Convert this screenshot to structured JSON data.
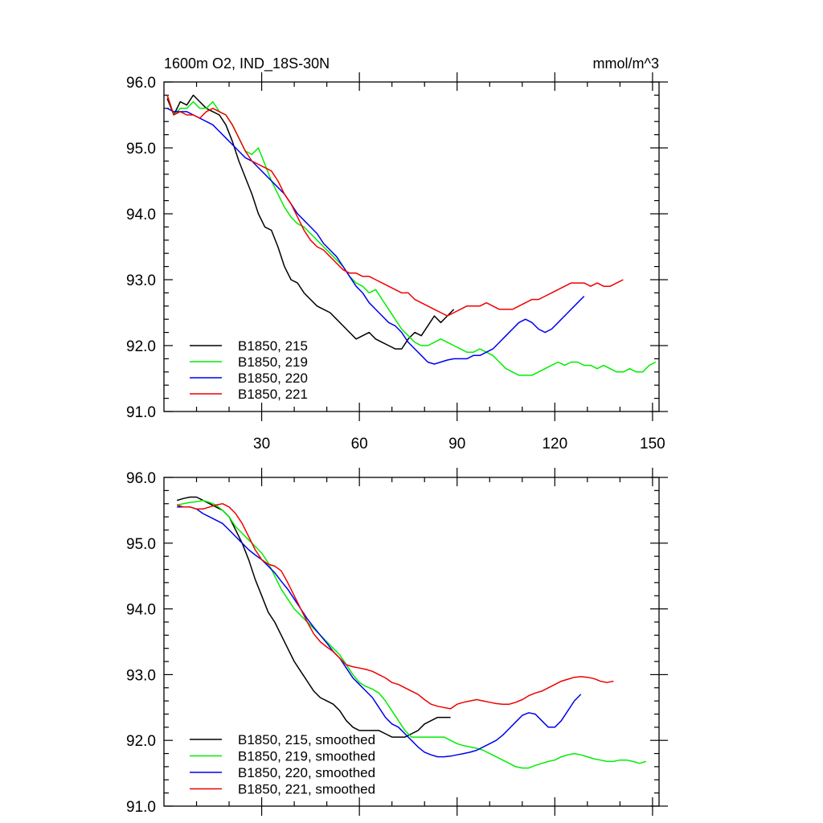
{
  "chart_data": [
    {
      "type": "line",
      "title": "1600m O2, IND_18S-30N",
      "units": "mmol/m^3",
      "xlabel": "",
      "ylabel": "",
      "xlim": [
        0,
        152
      ],
      "ylim": [
        91.0,
        96.0
      ],
      "xticks": [
        "30",
        "60",
        "90",
        "120",
        "150"
      ],
      "yticks": [
        "96.0",
        "95.0",
        "94.0",
        "93.0",
        "92.0",
        "91.0"
      ],
      "legend_position": "bottom-left",
      "series": [
        {
          "name": "B1850, 215",
          "color": "#000000",
          "x": [
            1,
            3,
            5,
            7,
            9,
            11,
            13,
            15,
            17,
            19,
            21,
            23,
            25,
            27,
            29,
            31,
            33,
            35,
            37,
            39,
            41,
            43,
            45,
            47,
            49,
            51,
            53,
            55,
            57,
            59,
            61,
            63,
            65,
            67,
            69,
            71,
            73,
            75,
            77,
            79,
            81,
            83,
            85,
            87,
            89
          ],
          "values": [
            95.75,
            95.5,
            95.7,
            95.65,
            95.8,
            95.7,
            95.6,
            95.55,
            95.5,
            95.35,
            95.1,
            94.8,
            94.55,
            94.3,
            94.0,
            93.8,
            93.75,
            93.5,
            93.2,
            93.0,
            92.95,
            92.8,
            92.7,
            92.6,
            92.55,
            92.5,
            92.4,
            92.3,
            92.2,
            92.1,
            92.15,
            92.2,
            92.1,
            92.05,
            92.0,
            91.95,
            91.95,
            92.1,
            92.2,
            92.15,
            92.3,
            92.45,
            92.35,
            92.45,
            92.55
          ]
        },
        {
          "name": "B1850, 219",
          "color": "#00ee00",
          "x": [
            1,
            3,
            5,
            7,
            9,
            11,
            13,
            15,
            17,
            19,
            21,
            23,
            25,
            27,
            29,
            31,
            33,
            35,
            37,
            39,
            41,
            43,
            45,
            47,
            49,
            51,
            53,
            55,
            57,
            59,
            61,
            63,
            65,
            67,
            69,
            71,
            73,
            75,
            77,
            79,
            81,
            83,
            85,
            87,
            89,
            91,
            93,
            95,
            97,
            99,
            101,
            103,
            105,
            107,
            109,
            111,
            113,
            115,
            117,
            119,
            121,
            123,
            125,
            127,
            129,
            131,
            133,
            135,
            137,
            139,
            141,
            143,
            145,
            147,
            149,
            151
          ],
          "values": [
            95.8,
            95.5,
            95.6,
            95.6,
            95.7,
            95.6,
            95.6,
            95.7,
            95.55,
            95.5,
            95.35,
            95.15,
            94.95,
            94.9,
            95.0,
            94.75,
            94.5,
            94.3,
            94.1,
            93.95,
            93.85,
            93.8,
            93.7,
            93.6,
            93.5,
            93.4,
            93.3,
            93.2,
            93.05,
            92.95,
            92.9,
            92.8,
            92.85,
            92.7,
            92.55,
            92.4,
            92.25,
            92.15,
            92.05,
            92.0,
            92.0,
            92.05,
            92.1,
            92.05,
            92.0,
            91.95,
            91.9,
            91.9,
            91.95,
            91.9,
            91.85,
            91.75,
            91.65,
            91.6,
            91.55,
            91.55,
            91.55,
            91.6,
            91.65,
            91.7,
            91.75,
            91.7,
            91.75,
            91.75,
            91.7,
            91.7,
            91.65,
            91.7,
            91.65,
            91.6,
            91.6,
            91.65,
            91.6,
            91.6,
            91.7,
            91.75
          ]
        },
        {
          "name": "B1850, 220",
          "color": "#0000ee",
          "x": [
            1,
            3,
            5,
            7,
            9,
            11,
            13,
            15,
            17,
            19,
            21,
            23,
            25,
            27,
            29,
            31,
            33,
            35,
            37,
            39,
            41,
            43,
            45,
            47,
            49,
            51,
            53,
            55,
            57,
            59,
            61,
            63,
            65,
            67,
            69,
            71,
            73,
            75,
            77,
            79,
            81,
            83,
            85,
            87,
            89,
            91,
            93,
            95,
            97,
            99,
            101,
            103,
            105,
            107,
            109,
            111,
            113,
            115,
            117,
            119,
            121,
            123,
            125,
            127,
            129
          ],
          "values": [
            95.6,
            95.55,
            95.55,
            95.55,
            95.5,
            95.45,
            95.4,
            95.35,
            95.25,
            95.15,
            95.05,
            94.95,
            94.85,
            94.8,
            94.7,
            94.6,
            94.5,
            94.4,
            94.3,
            94.15,
            94.0,
            93.9,
            93.8,
            93.7,
            93.55,
            93.45,
            93.35,
            93.2,
            93.05,
            92.9,
            92.8,
            92.65,
            92.55,
            92.45,
            92.35,
            92.3,
            92.2,
            92.05,
            91.95,
            91.85,
            91.75,
            91.72,
            91.75,
            91.78,
            91.8,
            91.8,
            91.8,
            91.85,
            91.85,
            91.9,
            91.95,
            92.05,
            92.15,
            92.25,
            92.35,
            92.4,
            92.35,
            92.25,
            92.2,
            92.25,
            92.35,
            92.45,
            92.55,
            92.65,
            92.75
          ]
        },
        {
          "name": "B1850, 221",
          "color": "#ee0000",
          "x": [
            1,
            3,
            5,
            7,
            9,
            11,
            13,
            15,
            17,
            19,
            21,
            23,
            25,
            27,
            29,
            31,
            33,
            35,
            37,
            39,
            41,
            43,
            45,
            47,
            49,
            51,
            53,
            55,
            57,
            59,
            61,
            63,
            65,
            67,
            69,
            71,
            73,
            75,
            77,
            79,
            81,
            83,
            85,
            87,
            89,
            91,
            93,
            95,
            97,
            99,
            101,
            103,
            105,
            107,
            109,
            111,
            113,
            115,
            117,
            119,
            121,
            123,
            125,
            127,
            129,
            131,
            133,
            135,
            137,
            139,
            141
          ],
          "values": [
            95.8,
            95.5,
            95.55,
            95.5,
            95.5,
            95.45,
            95.55,
            95.6,
            95.55,
            95.5,
            95.35,
            95.15,
            94.95,
            94.8,
            94.75,
            94.7,
            94.65,
            94.5,
            94.3,
            94.15,
            93.95,
            93.75,
            93.6,
            93.5,
            93.45,
            93.35,
            93.25,
            93.15,
            93.1,
            93.1,
            93.05,
            93.05,
            93.0,
            92.95,
            92.9,
            92.85,
            92.8,
            92.8,
            92.7,
            92.65,
            92.6,
            92.55,
            92.5,
            92.45,
            92.5,
            92.55,
            92.6,
            92.6,
            92.6,
            92.65,
            92.6,
            92.55,
            92.55,
            92.55,
            92.6,
            92.65,
            92.7,
            92.7,
            92.75,
            92.8,
            92.85,
            92.9,
            92.95,
            92.95,
            92.95,
            92.9,
            92.95,
            92.9,
            92.9,
            92.95,
            93.0
          ]
        }
      ]
    },
    {
      "type": "line",
      "title": "",
      "xlabel": "",
      "ylabel": "",
      "xlim": [
        0,
        152
      ],
      "ylim": [
        91.0,
        96.0
      ],
      "xticks": [],
      "yticks": [
        "96.0",
        "95.0",
        "94.0",
        "93.0",
        "92.0",
        "91.0"
      ],
      "legend_position": "bottom-left",
      "series": [
        {
          "name": "B1850, 215, smoothed",
          "color": "#000000",
          "x": [
            4,
            6,
            8,
            10,
            12,
            14,
            16,
            18,
            20,
            22,
            24,
            26,
            28,
            30,
            32,
            34,
            36,
            38,
            40,
            42,
            44,
            46,
            48,
            50,
            52,
            54,
            56,
            58,
            60,
            62,
            64,
            66,
            68,
            70,
            72,
            74,
            76,
            78,
            80,
            82,
            84,
            86,
            88
          ],
          "values": [
            95.65,
            95.68,
            95.7,
            95.7,
            95.65,
            95.6,
            95.55,
            95.5,
            95.4,
            95.2,
            95.0,
            94.75,
            94.45,
            94.2,
            93.95,
            93.8,
            93.6,
            93.4,
            93.2,
            93.05,
            92.9,
            92.75,
            92.65,
            92.6,
            92.55,
            92.45,
            92.3,
            92.2,
            92.15,
            92.15,
            92.15,
            92.15,
            92.1,
            92.05,
            92.05,
            92.05,
            92.1,
            92.15,
            92.25,
            92.3,
            92.35,
            92.35,
            92.35
          ]
        },
        {
          "name": "B1850, 219, smoothed",
          "color": "#00ee00",
          "x": [
            4,
            6,
            8,
            10,
            12,
            14,
            16,
            18,
            20,
            22,
            24,
            26,
            28,
            30,
            32,
            34,
            36,
            38,
            40,
            42,
            44,
            46,
            48,
            50,
            52,
            54,
            56,
            58,
            60,
            62,
            64,
            66,
            68,
            70,
            72,
            74,
            76,
            78,
            80,
            82,
            84,
            86,
            88,
            90,
            92,
            94,
            96,
            98,
            100,
            102,
            104,
            106,
            108,
            110,
            112,
            114,
            116,
            118,
            120,
            122,
            124,
            126,
            128,
            130,
            132,
            134,
            136,
            138,
            140,
            142,
            144,
            146,
            148
          ],
          "values": [
            95.58,
            95.6,
            95.62,
            95.63,
            95.65,
            95.62,
            95.58,
            95.5,
            95.4,
            95.25,
            95.15,
            95.05,
            94.95,
            94.85,
            94.7,
            94.5,
            94.3,
            94.15,
            94.0,
            93.9,
            93.8,
            93.7,
            93.6,
            93.5,
            93.4,
            93.3,
            93.15,
            93.0,
            92.88,
            92.82,
            92.78,
            92.72,
            92.6,
            92.45,
            92.3,
            92.15,
            92.05,
            92.05,
            92.05,
            92.05,
            92.05,
            92.05,
            92.0,
            91.95,
            91.92,
            91.9,
            91.88,
            91.85,
            91.8,
            91.75,
            91.7,
            91.65,
            91.6,
            91.58,
            91.58,
            91.62,
            91.65,
            91.68,
            91.7,
            91.75,
            91.78,
            91.8,
            91.78,
            91.75,
            91.72,
            91.7,
            91.68,
            91.68,
            91.7,
            91.7,
            91.68,
            91.65,
            91.68
          ]
        },
        {
          "name": "B1850, 220, smoothed",
          "color": "#0000ee",
          "x": [
            4,
            6,
            8,
            10,
            12,
            14,
            16,
            18,
            20,
            22,
            24,
            26,
            28,
            30,
            32,
            34,
            36,
            38,
            40,
            42,
            44,
            46,
            48,
            50,
            52,
            54,
            56,
            58,
            60,
            62,
            64,
            66,
            68,
            70,
            72,
            74,
            76,
            78,
            80,
            82,
            84,
            86,
            88,
            90,
            92,
            94,
            96,
            98,
            100,
            102,
            104,
            106,
            108,
            110,
            112,
            114,
            116,
            118,
            120,
            122,
            124,
            126,
            128
          ],
          "values": [
            95.55,
            95.55,
            95.55,
            95.52,
            95.45,
            95.4,
            95.35,
            95.3,
            95.2,
            95.1,
            95.0,
            94.9,
            94.82,
            94.75,
            94.65,
            94.55,
            94.42,
            94.3,
            94.15,
            94.0,
            93.85,
            93.72,
            93.6,
            93.48,
            93.35,
            93.25,
            93.1,
            92.95,
            92.85,
            92.75,
            92.65,
            92.5,
            92.35,
            92.25,
            92.2,
            92.1,
            92.0,
            91.9,
            91.82,
            91.78,
            91.75,
            91.75,
            91.76,
            91.78,
            91.8,
            91.82,
            91.85,
            91.9,
            91.95,
            92.0,
            92.08,
            92.18,
            92.28,
            92.38,
            92.42,
            92.4,
            92.3,
            92.2,
            92.2,
            92.3,
            92.45,
            92.6,
            92.7
          ]
        },
        {
          "name": "B1850, 221, smoothed",
          "color": "#ee0000",
          "x": [
            4,
            6,
            8,
            10,
            12,
            14,
            16,
            18,
            20,
            22,
            24,
            26,
            28,
            30,
            32,
            34,
            36,
            38,
            40,
            42,
            44,
            46,
            48,
            50,
            52,
            54,
            56,
            58,
            60,
            62,
            64,
            66,
            68,
            70,
            72,
            74,
            76,
            78,
            80,
            82,
            84,
            86,
            88,
            90,
            92,
            94,
            96,
            98,
            100,
            102,
            104,
            106,
            108,
            110,
            112,
            114,
            116,
            118,
            120,
            122,
            124,
            126,
            128,
            130,
            132,
            134,
            136,
            138
          ],
          "values": [
            95.58,
            95.55,
            95.55,
            95.52,
            95.52,
            95.55,
            95.58,
            95.6,
            95.55,
            95.45,
            95.3,
            95.1,
            94.9,
            94.75,
            94.68,
            94.65,
            94.58,
            94.4,
            94.2,
            94.0,
            93.8,
            93.62,
            93.5,
            93.42,
            93.35,
            93.25,
            93.15,
            93.12,
            93.1,
            93.08,
            93.05,
            93.0,
            92.95,
            92.88,
            92.85,
            92.8,
            92.75,
            92.7,
            92.62,
            92.55,
            92.52,
            92.5,
            92.48,
            92.55,
            92.58,
            92.6,
            92.62,
            92.6,
            92.58,
            92.56,
            92.55,
            92.55,
            92.58,
            92.62,
            92.68,
            92.72,
            92.75,
            92.8,
            92.85,
            92.9,
            92.93,
            92.96,
            92.97,
            92.96,
            92.94,
            92.9,
            92.88,
            92.9
          ]
        }
      ]
    }
  ]
}
